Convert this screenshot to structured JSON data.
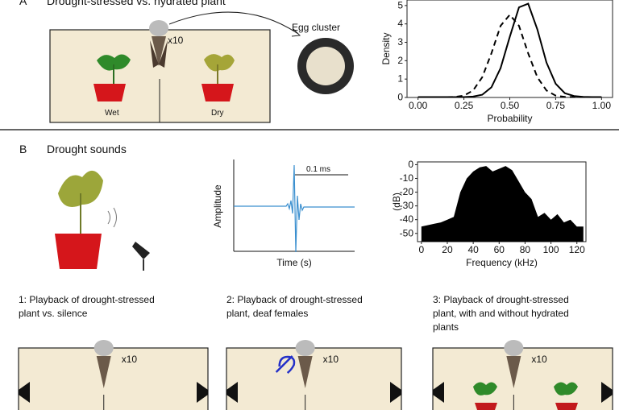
{
  "panel_a": {
    "label": "A",
    "title": "Drought-stressed vs. hydrated plant",
    "count": "x10",
    "left_label": "Wet",
    "right_label": "Dry",
    "egg_label": "Egg cluster",
    "density_chart": {
      "type": "line",
      "ylabel": "Density",
      "xlabel": "Probability",
      "x": [
        0,
        0.05,
        0.1,
        0.15,
        0.2,
        0.25,
        0.3,
        0.35,
        0.4,
        0.45,
        0.5,
        0.55,
        0.6,
        0.65,
        0.7,
        0.75,
        0.8,
        0.85,
        0.9,
        0.95,
        1
      ],
      "series": [
        {
          "color": "#000000",
          "dashed": false,
          "values": [
            0.02,
            0.02,
            0.02,
            0.02,
            0.02,
            0.02,
            0.05,
            0.15,
            0.55,
            1.6,
            3.3,
            4.9,
            5.1,
            3.7,
            1.9,
            0.75,
            0.23,
            0.08,
            0.03,
            0.02,
            0.02
          ]
        },
        {
          "color": "#000000",
          "dashed": true,
          "values": [
            0.02,
            0.02,
            0.02,
            0.02,
            0.03,
            0.1,
            0.38,
            1.1,
            2.4,
            3.9,
            4.5,
            3.9,
            2.4,
            1.1,
            0.38,
            0.1,
            0.03,
            0.02,
            0.02,
            0.02,
            0.02
          ]
        }
      ],
      "xlim": [
        -0.06,
        1.06
      ],
      "ylim": [
        0,
        5.3
      ],
      "xticks": [
        {
          "value": 0,
          "label": "0.00"
        },
        0.25,
        {
          "value": 0.5,
          "label": "0.50"
        },
        0.75,
        {
          "value": 1,
          "label": "1.00"
        }
      ],
      "yticks": [
        0,
        1,
        2,
        3,
        4,
        5
      ]
    }
  },
  "panel_b": {
    "label": "B",
    "title": "Drought sounds",
    "wave": {
      "ylabel": "Amplitude",
      "xlabel": "Time (s)",
      "scale_label": "0.1 ms"
    },
    "spectrum_chart": {
      "type": "area",
      "ylabel": "(dB)",
      "xlabel": "Frequency (kHz)",
      "color": "#000000",
      "x": [
        0,
        5,
        10,
        15,
        20,
        25,
        30,
        35,
        40,
        45,
        50,
        55,
        60,
        65,
        70,
        75,
        80,
        85,
        90,
        95,
        100,
        105,
        110,
        115,
        120,
        125
      ],
      "values": [
        -45,
        -44,
        -43,
        -42,
        -40,
        -38,
        -20,
        -10,
        -5,
        -2,
        -1,
        -5,
        -3,
        -1,
        -4,
        -12,
        -20,
        -25,
        -38,
        -35,
        -40,
        -36,
        -42,
        -40,
        -45,
        -45
      ],
      "xlim": [
        -3,
        127
      ],
      "ylim": [
        -56,
        2
      ],
      "xticks": [
        0,
        20,
        40,
        60,
        80,
        100,
        120
      ],
      "yticks": [
        0,
        -10,
        -20,
        -30,
        -40,
        -50
      ]
    },
    "experiments": [
      {
        "lines": [
          "1: Playback of drought-stressed",
          "plant vs. silence"
        ],
        "count": "x10"
      },
      {
        "lines": [
          "2: Playback of drought-stressed",
          "plant, deaf females"
        ],
        "count": "x10"
      },
      {
        "lines": [
          "3: Playback of drought-stressed",
          "plant, with and without hydrated",
          "plants"
        ],
        "count": "x10"
      }
    ]
  }
}
